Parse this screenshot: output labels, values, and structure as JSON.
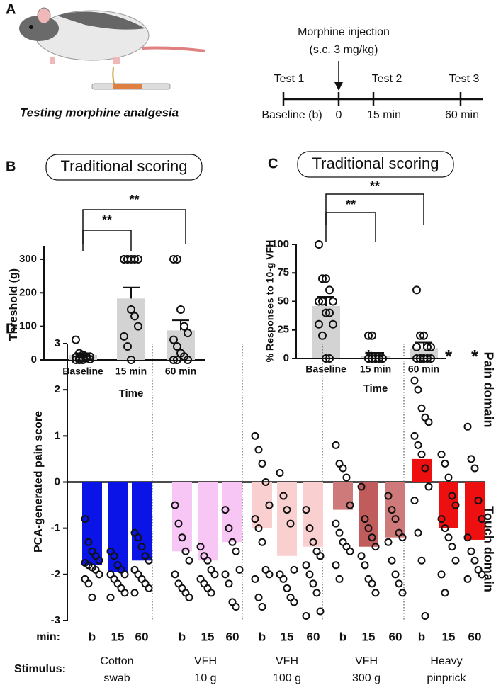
{
  "panel_a": {
    "letter": "A",
    "caption": "Testing morphine analgesia",
    "injection": [
      "Morphine injection",
      "(s.c. 3 mg/kg)"
    ],
    "tests": [
      "Test 1",
      "Test 2",
      "Test 3"
    ],
    "times": [
      "Baseline (b)",
      "0",
      "15 min",
      "60 min"
    ]
  },
  "chart_data": [
    {
      "type": "bar",
      "panel": "B",
      "title": "Traditional scoring",
      "xlabel": "Time",
      "ylabel": "Threshold (g)",
      "categories": [
        "Baseline",
        "15 min",
        "60 min"
      ],
      "values": [
        15,
        183,
        88
      ],
      "errors": [
        5,
        33,
        30
      ],
      "color": "#d3d3d3",
      "points": [
        [
          60,
          20,
          15,
          10,
          10,
          8,
          5,
          5,
          5,
          2,
          0,
          0,
          0
        ],
        [
          300,
          300,
          300,
          300,
          300,
          300,
          300,
          150,
          130,
          100,
          70,
          40,
          0
        ],
        [
          300,
          300,
          150,
          100,
          80,
          60,
          40,
          20,
          10,
          0,
          0,
          0
        ]
      ],
      "ylim": [
        0,
        340
      ],
      "yticks": [
        0,
        100,
        200,
        300
      ],
      "annotations": [
        "**",
        "**"
      ]
    },
    {
      "type": "bar",
      "panel": "C",
      "title": "Traditional scoring",
      "xlabel": "Time",
      "ylabel": "% Responses to 10-g VFH",
      "categories": [
        "Baseline",
        "15 min",
        "60 min"
      ],
      "values": [
        46,
        2,
        9
      ],
      "errors": [
        8,
        3,
        5
      ],
      "color": "#d3d3d3",
      "points": [
        [
          100,
          70,
          70,
          60,
          50,
          50,
          50,
          40,
          40,
          30,
          30,
          20,
          0,
          0
        ],
        [
          20,
          20,
          0,
          0,
          0,
          0,
          0,
          0,
          0,
          0,
          0,
          0,
          0
        ],
        [
          60,
          20,
          20,
          10,
          10,
          10,
          0,
          0,
          0,
          0,
          0,
          0,
          0
        ]
      ],
      "ylim": [
        0,
        100
      ],
      "yticks": [
        0,
        25,
        50,
        75,
        100
      ],
      "annotations": [
        "**",
        "**"
      ]
    },
    {
      "type": "bar",
      "panel": "D",
      "ylabel": "PCA-generated pain score",
      "side_labels": [
        "Pain domain",
        "Touch domain"
      ],
      "row_labels": [
        "min:",
        "Stimulus:"
      ],
      "groups": [
        [
          "Cotton",
          "swab"
        ],
        [
          "VFH",
          "10 g"
        ],
        [
          "VFH",
          "100 g"
        ],
        [
          "VFH",
          "300 g"
        ],
        [
          "Heavy",
          "pinprick"
        ]
      ],
      "categories": [
        "b",
        "15",
        "60",
        "b",
        "15",
        "60",
        "b",
        "15",
        "60",
        "b",
        "15",
        "60",
        "b",
        "15",
        "60"
      ],
      "values": [
        -1.8,
        -1.95,
        -1.7,
        -1.5,
        -1.7,
        -1.3,
        -1.0,
        -1.6,
        -1.4,
        -0.6,
        -1.4,
        -1.2,
        0.5,
        -1.0,
        -1.25
      ],
      "colors": [
        "#0a14e6",
        "#0a14e6",
        "#0a14e6",
        "#f7c6f5",
        "#f7c6f5",
        "#f7c6f5",
        "#f9cfcf",
        "#f9cfcf",
        "#f9cfcf",
        "#cf7a7a",
        "#c05c5c",
        "#cf7a7a",
        "#ee1010",
        "#ee1010",
        "#ee1010"
      ],
      "significance": [
        null,
        null,
        null,
        null,
        null,
        null,
        null,
        null,
        null,
        null,
        "*",
        null,
        null,
        "*",
        "*"
      ],
      "points": [
        [
          -0.8,
          -1.3,
          -1.5,
          -1.6,
          -1.7,
          -1.75,
          -1.8,
          -1.85,
          -1.9,
          -2.0,
          -2.1,
          -2.2,
          -2.5
        ],
        [
          -1.5,
          -1.6,
          -1.8,
          -1.9,
          -2.0,
          -2.0,
          -2.1,
          -2.2,
          -2.3,
          -2.4,
          -2.5
        ],
        [
          -1.1,
          -1.2,
          -1.4,
          -1.6,
          -1.7,
          -1.9,
          -2.0,
          -2.1,
          -2.2,
          -2.3,
          -2.4
        ],
        [
          -0.5,
          -0.9,
          -1.2,
          -1.5,
          -1.7,
          -2.0,
          -2.2,
          -2.3,
          -2.4,
          -2.5
        ],
        [
          -1.4,
          -1.6,
          -1.7,
          -1.9,
          -2.0,
          -2.1,
          -2.2,
          -2.3,
          -2.4
        ],
        [
          -0.6,
          -1.0,
          -1.3,
          -1.5,
          -1.9,
          -2.0,
          -2.2,
          -2.6,
          -2.7
        ],
        [
          1.0,
          0.7,
          0.4,
          0.0,
          -0.5,
          -0.8,
          -1.0,
          -1.3,
          -1.9,
          -2.0,
          -2.1,
          -2.5,
          -2.7
        ],
        [
          0.2,
          -0.3,
          -0.6,
          -0.9,
          -1.9,
          -2.0,
          -2.1,
          -2.3,
          -2.5,
          -2.6
        ],
        [
          -0.6,
          -1.0,
          -1.3,
          -1.5,
          -1.6,
          -1.8,
          -2.0,
          -2.2,
          -2.4,
          -2.8,
          -2.9
        ],
        [
          0.8,
          0.4,
          0.3,
          0.1,
          -0.5,
          -0.9,
          -1.1,
          -1.3,
          -1.4,
          -1.5,
          -1.8,
          -2.1
        ],
        [
          -0.1,
          -0.8,
          -1.0,
          -1.2,
          -1.4,
          -1.6,
          -1.8,
          -2.1,
          -2.2,
          -2.4
        ],
        [
          -0.3,
          -0.6,
          -0.8,
          -1.1,
          -1.2,
          -1.3,
          -1.7,
          -2.0,
          -2.2,
          -2.4
        ],
        [
          2.2,
          2.0,
          1.6,
          1.4,
          1.3,
          1.0,
          0.8,
          0.6,
          0.3,
          -0.1,
          -0.4,
          -1.1,
          -1.7,
          -2.9
        ],
        [
          0.6,
          0.4,
          0.1,
          -0.3,
          -0.5,
          -0.8,
          -1.0,
          -1.2,
          -1.4,
          -1.7,
          -2.0,
          -2.4
        ],
        [
          1.2,
          0.5,
          0.3,
          -0.4,
          -0.8,
          -1.2,
          -1.5,
          -1.7,
          -1.9,
          -2.0,
          -2.1
        ]
      ],
      "ylim": [
        -3,
        3
      ],
      "yticks": [
        -3,
        -2,
        -1,
        0,
        1,
        2,
        3
      ]
    }
  ]
}
